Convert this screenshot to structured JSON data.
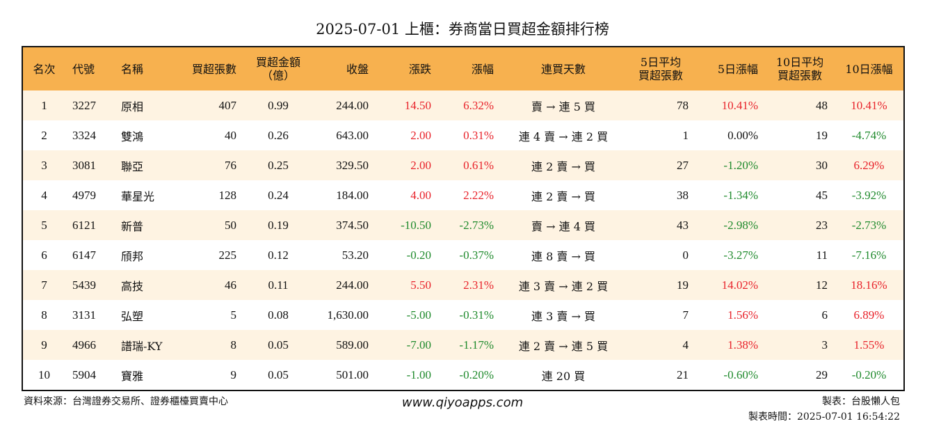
{
  "title": "2025-07-01 上櫃：券商當日買超金額排行榜",
  "headers": [
    "名次",
    "代號",
    "名稱",
    "買超張數",
    "買超金額\n（億）",
    "收盤",
    "漲跌",
    "漲幅",
    "連買天數",
    "5日平均\n買超張數",
    "5日漲幅",
    "10日平均\n買超張數",
    "10日漲幅"
  ],
  "rows": [
    [
      "1",
      "3227",
      "原相",
      "407",
      "0.99",
      "244.00",
      "14.50",
      "6.32%",
      "賣 → 連 5 買",
      "78",
      "10.41%",
      "48",
      "10.41%"
    ],
    [
      "2",
      "3324",
      "雙鴻",
      "40",
      "0.26",
      "643.00",
      "2.00",
      "0.31%",
      "連 4 賣 → 連 2 買",
      "1",
      "0.00%",
      "19",
      "-4.74%"
    ],
    [
      "3",
      "3081",
      "聯亞",
      "76",
      "0.25",
      "329.50",
      "2.00",
      "0.61%",
      "連 2 賣 → 買",
      "27",
      "-1.20%",
      "30",
      "6.29%"
    ],
    [
      "4",
      "4979",
      "華星光",
      "128",
      "0.24",
      "184.00",
      "4.00",
      "2.22%",
      "連 2 賣 → 買",
      "38",
      "-1.34%",
      "45",
      "-3.92%"
    ],
    [
      "5",
      "6121",
      "新普",
      "50",
      "0.19",
      "374.50",
      "-10.50",
      "-2.73%",
      "賣 → 連 4 買",
      "43",
      "-2.98%",
      "23",
      "-2.73%"
    ],
    [
      "6",
      "6147",
      "頎邦",
      "225",
      "0.12",
      "53.20",
      "-0.20",
      "-0.37%",
      "連 8 賣 → 買",
      "0",
      "-3.27%",
      "11",
      "-7.16%"
    ],
    [
      "7",
      "5439",
      "高技",
      "46",
      "0.11",
      "244.00",
      "5.50",
      "2.31%",
      "連 3 賣 → 連 2 買",
      "19",
      "14.02%",
      "12",
      "18.16%"
    ],
    [
      "8",
      "3131",
      "弘塑",
      "5",
      "0.08",
      "1,630.00",
      "-5.00",
      "-0.31%",
      "連 3 賣 → 買",
      "7",
      "1.56%",
      "6",
      "6.89%"
    ],
    [
      "9",
      "4966",
      "譜瑞-KY",
      "8",
      "0.05",
      "589.00",
      "-7.00",
      "-1.17%",
      "連 2 賣 → 連 5 買",
      "4",
      "1.38%",
      "3",
      "1.55%"
    ],
    [
      "10",
      "5904",
      "寶雅",
      "9",
      "0.05",
      "501.00",
      "-1.00",
      "-0.20%",
      "連 20 買",
      "21",
      "-0.60%",
      "29",
      "-0.20%"
    ]
  ],
  "footer": {
    "source": "資料來源：台灣證券交易所、證券櫃檯買賣中心",
    "site": "www.qiyoapps.com",
    "author": "製表：台股懶人包",
    "time": "製表時間：2025-07-01 16:54:22"
  },
  "colors": {
    "header_bg": "#f7b14f",
    "odd_row_bg": "#fef3e2",
    "up": "#e8222a",
    "down": "#1f8a2c"
  }
}
